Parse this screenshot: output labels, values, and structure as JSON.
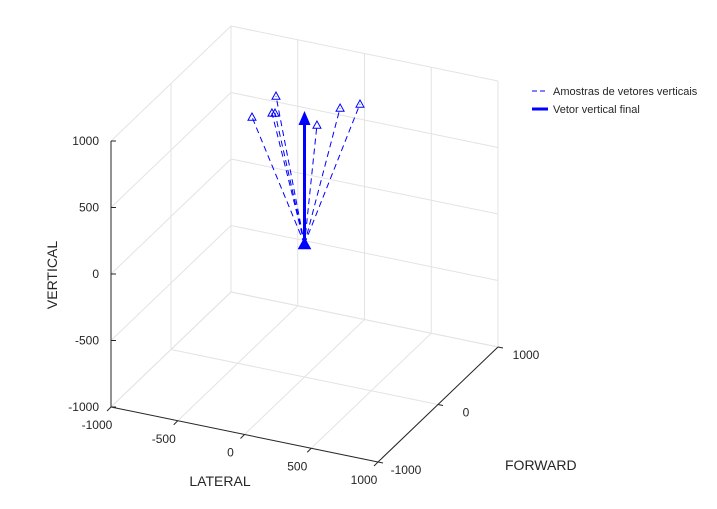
{
  "chart_data": {
    "type": "vector3d",
    "xlabel": "LATERAL",
    "ylabel": "FORWARD",
    "zlabel": "VERTICAL",
    "xlim": [
      -1000,
      1000
    ],
    "ylim": [
      -1000,
      1000
    ],
    "zlim": [
      -1000,
      1000
    ],
    "xticks": [
      -1000,
      -500,
      0,
      500,
      1000
    ],
    "yticks": [
      -1000,
      0,
      1000
    ],
    "zticks": [
      -1000,
      -500,
      0,
      500,
      1000
    ],
    "grid": true,
    "origin": [
      0,
      0,
      0
    ],
    "legend": "upper right",
    "series": [
      {
        "name": "Amostras de vetores verticais",
        "color": "#0000ff",
        "style": "dashed",
        "x": [
          -285,
          -272,
          -188,
          -169,
          167,
          200,
          297
        ],
        "y": [
          -241,
          130,
          -124,
          -116,
          -164,
          148,
          264
        ],
        "z": [
          1000,
          1000,
          1000,
          1000,
          1000,
          1000,
          1000
        ]
      },
      {
        "name": "Vetor vertical final",
        "color": "#0000ff",
        "style": "solid",
        "x": [
          0
        ],
        "y": [
          0
        ],
        "z": [
          1000
        ]
      }
    ]
  }
}
